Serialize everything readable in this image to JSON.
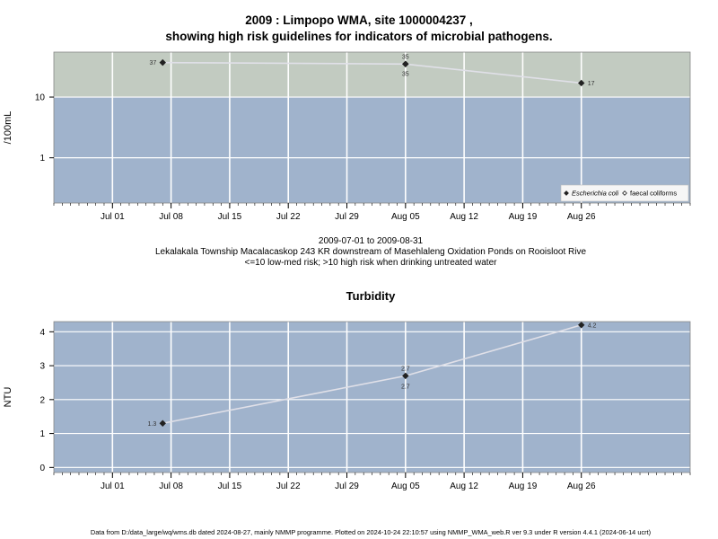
{
  "titles": {
    "line1": "2009 : Limpopo WMA, site 1000004237 ,",
    "line2": "showing high risk guidelines for indicators of microbial pathogens.",
    "turbidity": "Turbidity"
  },
  "subtitle": {
    "date_range": "2009-07-01 to 2009-08-31",
    "location": "Lekalakala Township Macalacaskop 243 KR downstream of Masehlaleng Oxidation Ponds on Rooisloot Rive",
    "guideline": "<=10 low-med risk; >10 high risk when drinking untreated water"
  },
  "footer": "Data from D:/data_large/wq/wms.db dated 2024-08-27, mainly NMMP programme. Plotted on 2024-10-24 22:10:57 using NMMP_WMA_web.R ver 9.3 under R version 4.4.1 (2024-06-14 ucrt)",
  "colors": {
    "panel_bg": "#a0b3cc",
    "high_risk_band": "#c2cbc1",
    "grid": "#ffffff",
    "series_line": "#e0e0e8",
    "marker": "#222222"
  },
  "chart_data": [
    {
      "type": "line",
      "ylabel": "/100mL",
      "yscale": "log",
      "ylim": [
        0.18,
        55
      ],
      "yticks": [
        1,
        10
      ],
      "ytick_labels": [
        "1",
        "10"
      ],
      "high_risk_threshold": 10,
      "x_axis": "date",
      "xlim": [
        "2009-06-24",
        "2009-09-08"
      ],
      "xticks": [
        "2009-07-01",
        "2009-07-08",
        "2009-07-15",
        "2009-07-22",
        "2009-07-29",
        "2009-08-05",
        "2009-08-12",
        "2009-08-19",
        "2009-08-26"
      ],
      "xtick_labels": [
        "Jul 01",
        "Jul 08",
        "Jul 15",
        "Jul 22",
        "Jul 29",
        "Aug 05",
        "Aug 12",
        "Aug 19",
        "Aug 26"
      ],
      "legend": {
        "placement": "bottom-right",
        "entries": [
          {
            "name": "Escherichia coli",
            "italic": true,
            "marker": "filled-diamond"
          },
          {
            "name": "faecal coliforms",
            "italic": false,
            "marker": "open-diamond"
          }
        ]
      },
      "series": [
        {
          "name": "Escherichia coli",
          "points": [
            {
              "x": "2009-07-07",
              "y": 37,
              "label": "37",
              "label_pos": "left"
            },
            {
              "x": "2009-08-05",
              "y": 35,
              "label": "35",
              "label_pos": "below"
            },
            {
              "x": "2009-08-26",
              "y": 17,
              "label": "17",
              "label_pos": "right"
            }
          ]
        },
        {
          "name": "faecal coliforms",
          "points": [
            {
              "x": "2009-08-05",
              "y": 35,
              "label": "35",
              "label_pos": "above"
            }
          ]
        }
      ]
    },
    {
      "type": "line",
      "title": "Turbidity",
      "ylabel": "NTU",
      "yscale": "linear",
      "ylim": [
        -0.15,
        4.3
      ],
      "yticks": [
        0,
        1,
        2,
        3,
        4
      ],
      "ytick_labels": [
        "0",
        "1",
        "2",
        "3",
        "4"
      ],
      "x_axis": "date",
      "xlim": [
        "2009-06-24",
        "2009-09-08"
      ],
      "xticks": [
        "2009-07-01",
        "2009-07-08",
        "2009-07-15",
        "2009-07-22",
        "2009-07-29",
        "2009-08-05",
        "2009-08-12",
        "2009-08-19",
        "2009-08-26"
      ],
      "xtick_labels": [
        "Jul 01",
        "Jul 08",
        "Jul 15",
        "Jul 22",
        "Jul 29",
        "Aug 05",
        "Aug 12",
        "Aug 19",
        "Aug 26"
      ],
      "series": [
        {
          "name": "Turbidity",
          "points": [
            {
              "x": "2009-07-07",
              "y": 1.3,
              "label": "1.3",
              "label_pos": "left"
            },
            {
              "x": "2009-08-05",
              "y": 2.7,
              "label": "2.7",
              "label_pos": "above_below"
            },
            {
              "x": "2009-08-26",
              "y": 4.2,
              "label": "4.2",
              "label_pos": "right"
            }
          ]
        }
      ]
    }
  ]
}
